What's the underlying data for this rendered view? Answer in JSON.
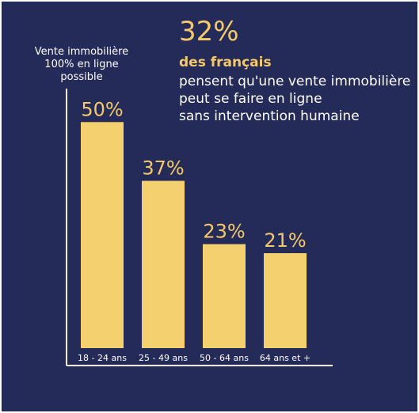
{
  "colors": {
    "background": "#252b59",
    "bar": "#f5d06f",
    "value_label": "#f5c96a",
    "axis": "#ffffff",
    "text": "#ffffff"
  },
  "headline": {
    "stat": "32%",
    "subject": "des français",
    "description_lines": [
      "pensent qu'une vente immobilière",
      "peut se faire en ligne",
      "sans intervention humaine"
    ]
  },
  "chart_data": {
    "type": "bar",
    "title": "",
    "ylabel_lines": [
      "Vente immobilière",
      "100% en ligne",
      "possible"
    ],
    "xlabel": "",
    "categories": [
      "18 - 24 ans",
      "25 - 49 ans",
      "50 - 64 ans",
      "64 ans et +"
    ],
    "values": [
      50,
      37,
      23,
      21
    ],
    "value_labels": [
      "50%",
      "37%",
      "23%",
      "21%"
    ],
    "unit": "%",
    "ylim": [
      0,
      56
    ],
    "grid": false,
    "legend": "none"
  }
}
